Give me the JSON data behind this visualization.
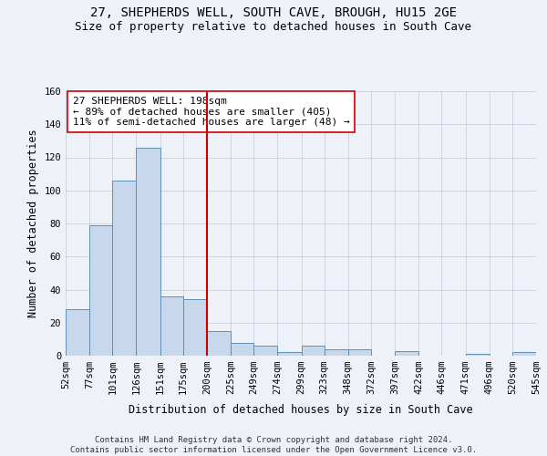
{
  "title": "27, SHEPHERDS WELL, SOUTH CAVE, BROUGH, HU15 2GE",
  "subtitle": "Size of property relative to detached houses in South Cave",
  "xlabel": "Distribution of detached houses by size in South Cave",
  "ylabel": "Number of detached properties",
  "bar_color": "#c8d8ec",
  "bar_edge_color": "#6090b8",
  "grid_color": "#c8d0dc",
  "background_color": "#eef2f8",
  "vline_x": 200,
  "vline_color": "#cc0000",
  "annotation_text": "27 SHEPHERDS WELL: 198sqm\n← 89% of detached houses are smaller (405)\n11% of semi-detached houses are larger (48) →",
  "annotation_box_color": "#ffffff",
  "annotation_box_edge": "#cc0000",
  "bin_edges": [
    52,
    77,
    101,
    126,
    151,
    175,
    200,
    225,
    249,
    274,
    299,
    323,
    348,
    372,
    397,
    422,
    446,
    471,
    496,
    520,
    545
  ],
  "bar_heights": [
    28,
    79,
    106,
    126,
    36,
    34,
    15,
    8,
    6,
    2,
    6,
    4,
    4,
    0,
    3,
    0,
    0,
    1,
    0,
    2
  ],
  "ylim": [
    0,
    160
  ],
  "yticks": [
    0,
    20,
    40,
    60,
    80,
    100,
    120,
    140,
    160
  ],
  "footer_text": "Contains HM Land Registry data © Crown copyright and database right 2024.\nContains public sector information licensed under the Open Government Licence v3.0.",
  "title_fontsize": 10,
  "subtitle_fontsize": 9,
  "xlabel_fontsize": 8.5,
  "ylabel_fontsize": 8.5,
  "tick_fontsize": 7.5,
  "footer_fontsize": 6.5,
  "annot_fontsize": 8
}
